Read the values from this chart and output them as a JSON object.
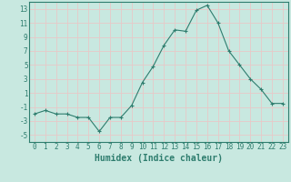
{
  "x": [
    0,
    1,
    2,
    3,
    4,
    5,
    6,
    7,
    8,
    9,
    10,
    11,
    12,
    13,
    14,
    15,
    16,
    17,
    18,
    19,
    20,
    21,
    22,
    23
  ],
  "y": [
    -2,
    -1.5,
    -2,
    -2,
    -2.5,
    -2.5,
    -4.5,
    -2.5,
    -2.5,
    -0.8,
    2.5,
    4.8,
    7.8,
    10,
    9.8,
    12.8,
    13.5,
    11,
    7,
    5,
    3,
    1.5,
    -0.5,
    -0.5
  ],
  "line_color": "#2e7d6e",
  "marker": "+",
  "marker_size": 3,
  "marker_lw": 0.8,
  "bg_color": "#c8e8e0",
  "grid_color": "#e8c8c8",
  "tick_color": "#2e7d6e",
  "label_color": "#2e7d6e",
  "xlabel": "Humidex (Indice chaleur)",
  "ylim": [
    -6,
    14
  ],
  "xlim": [
    -0.5,
    23.5
  ],
  "yticks": [
    -5,
    -3,
    -1,
    1,
    3,
    5,
    7,
    9,
    11,
    13
  ],
  "xticks": [
    0,
    1,
    2,
    3,
    4,
    5,
    6,
    7,
    8,
    9,
    10,
    11,
    12,
    13,
    14,
    15,
    16,
    17,
    18,
    19,
    20,
    21,
    22,
    23
  ],
  "xlabel_fontsize": 7,
  "tick_fontsize": 5.5,
  "line_width": 0.8
}
